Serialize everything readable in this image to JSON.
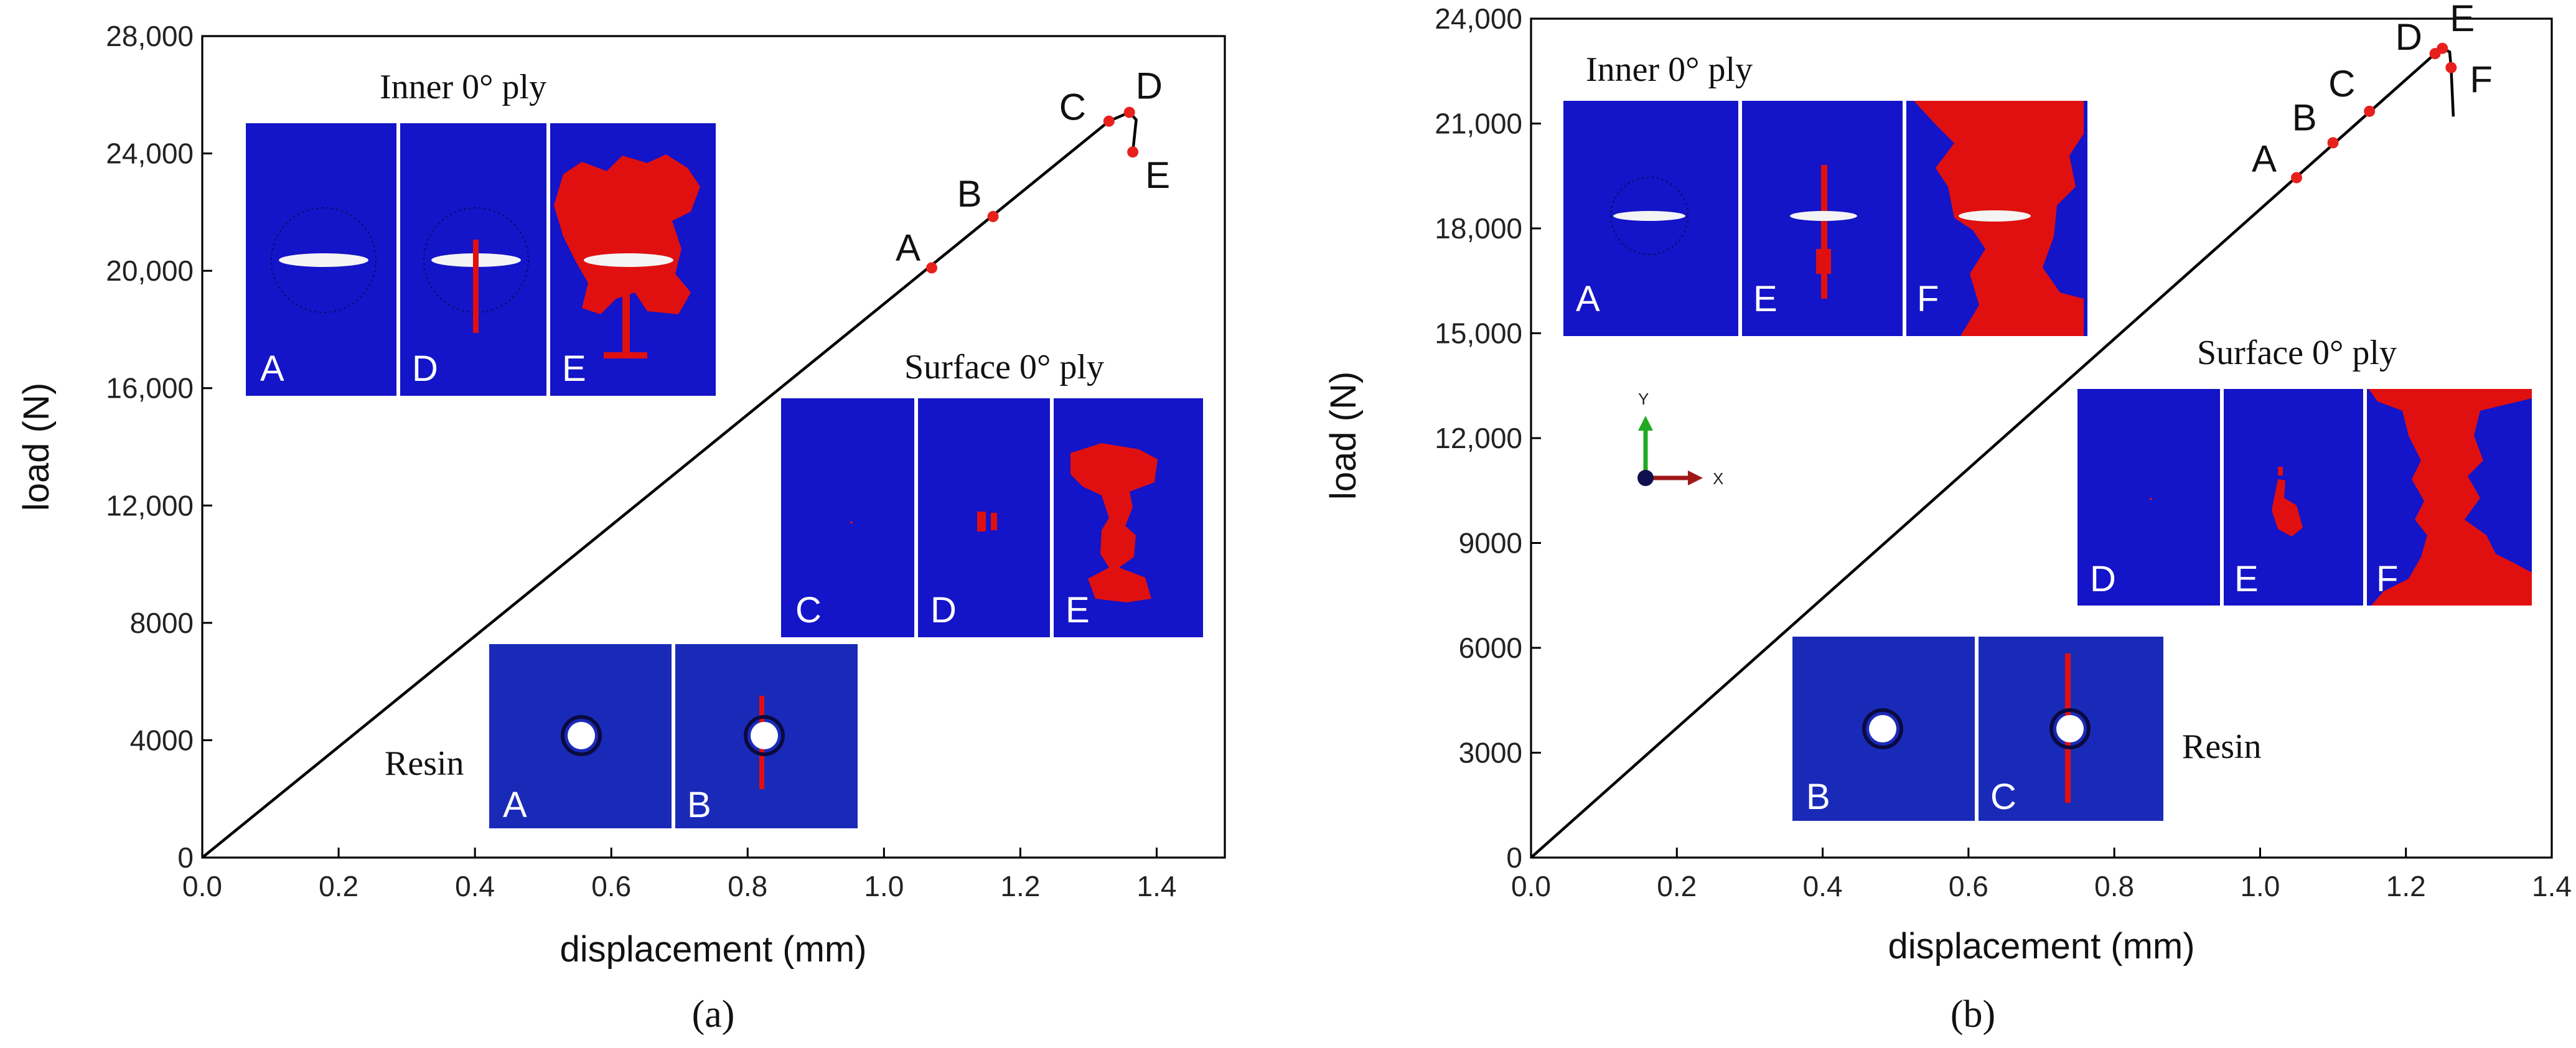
{
  "chart_data": [
    {
      "type": "line",
      "caption": "(a)",
      "xlabel": "displacement (mm)",
      "ylabel": "load (N)",
      "xlim": [
        0,
        1.5
      ],
      "ylim": [
        0,
        28000
      ],
      "xticks": [
        0.0,
        0.2,
        0.4,
        0.6,
        0.8,
        1.0,
        1.2,
        1.4
      ],
      "xtick_labels": [
        "0.0",
        "0.2",
        "0.4",
        "0.6",
        "0.8",
        "1.0",
        "1.2",
        "1.4"
      ],
      "yticks": [
        0,
        4000,
        8000,
        12000,
        16000,
        20000,
        24000,
        28000
      ],
      "ytick_labels": [
        "0",
        "4000",
        "8000",
        "12,000",
        "16,000",
        "20,000",
        "24,000",
        "28,000"
      ],
      "series": [
        {
          "name": "load-displacement",
          "x": [
            0.0,
            1.33,
            1.36,
            1.37,
            1.365
          ],
          "y": [
            0,
            25100,
            25400,
            25150,
            24050
          ]
        }
      ],
      "points": [
        {
          "label": "A",
          "x": 1.07,
          "y": 20100
        },
        {
          "label": "B",
          "x": 1.16,
          "y": 21850
        },
        {
          "label": "C",
          "x": 1.33,
          "y": 25100
        },
        {
          "label": "D",
          "x": 1.36,
          "y": 25400
        },
        {
          "label": "E",
          "x": 1.365,
          "y": 24050
        }
      ],
      "insets": [
        {
          "title": "Inner 0° ply",
          "panels": [
            "A",
            "D",
            "E"
          ]
        },
        {
          "title": "Surface 0° ply",
          "panels": [
            "C",
            "D",
            "E"
          ]
        },
        {
          "title": "Resin",
          "panels": [
            "A",
            "B"
          ]
        }
      ]
    },
    {
      "type": "line",
      "caption": "(b)",
      "xlabel": "displacement (mm)",
      "ylabel": "load (N)",
      "xlim": [
        0,
        1.4
      ],
      "ylim": [
        0,
        24000
      ],
      "xticks": [
        0.0,
        0.2,
        0.4,
        0.6,
        0.8,
        1.0,
        1.2,
        1.4
      ],
      "xtick_labels": [
        "0.0",
        "0.2",
        "0.4",
        "0.6",
        "0.8",
        "1.0",
        "1.2",
        "1.4"
      ],
      "yticks": [
        0,
        3000,
        6000,
        9000,
        12000,
        15000,
        18000,
        21000,
        24000
      ],
      "ytick_labels": [
        "0",
        "3000",
        "6000",
        "9000",
        "12,000",
        "15,000",
        "18,000",
        "21,000",
        "24,000"
      ],
      "series": [
        {
          "name": "load-displacement",
          "x": [
            0.0,
            1.24,
            1.25,
            1.26,
            1.262,
            1.265
          ],
          "y": [
            0,
            23000,
            23150,
            23050,
            22600,
            21200
          ]
        }
      ],
      "points": [
        {
          "label": "A",
          "x": 1.05,
          "y": 19450
        },
        {
          "label": "B",
          "x": 1.1,
          "y": 20450
        },
        {
          "label": "C",
          "x": 1.15,
          "y": 21350
        },
        {
          "label": "D",
          "x": 1.24,
          "y": 23000
        },
        {
          "label": "E",
          "x": 1.25,
          "y": 23150
        },
        {
          "label": "F",
          "x": 1.262,
          "y": 22600
        }
      ],
      "insets": [
        {
          "title": "Inner 0° ply",
          "panels": [
            "A",
            "E",
            "F"
          ]
        },
        {
          "title": "Surface 0° ply",
          "panels": [
            "D",
            "E",
            "F"
          ]
        },
        {
          "title": "Resin",
          "panels": [
            "B",
            "C"
          ]
        }
      ],
      "axis_triad": {
        "y_label": "Y",
        "x_label": "X"
      }
    }
  ]
}
